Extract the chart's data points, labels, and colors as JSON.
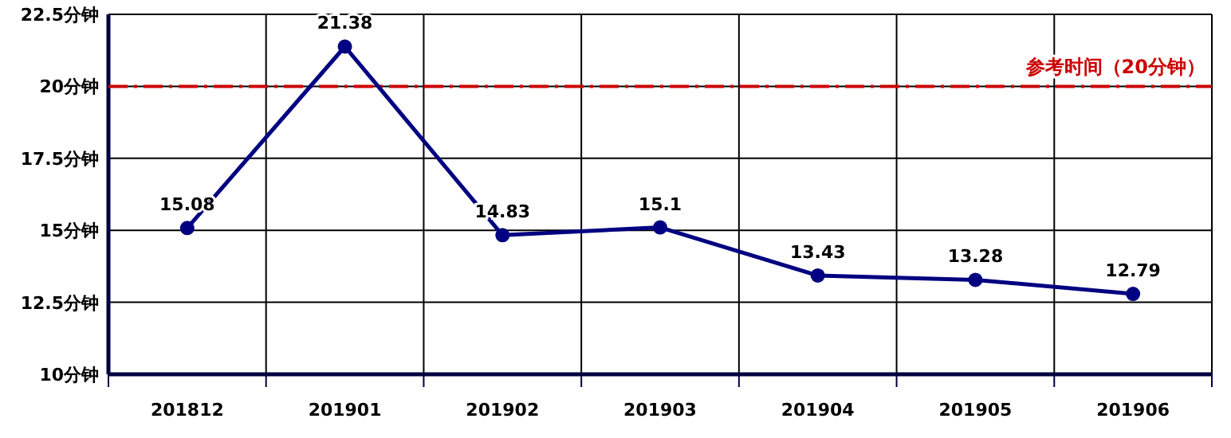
{
  "chart_data": {
    "type": "line",
    "categories": [
      "201812",
      "201901",
      "201902",
      "201903",
      "201904",
      "201905",
      "201906"
    ],
    "series": [
      {
        "color": "#000080",
        "values": [
          15.08,
          21.38,
          14.83,
          15.1,
          13.43,
          13.28,
          12.79
        ]
      }
    ],
    "ylim": [
      10,
      22.5
    ],
    "yticks": [
      {
        "value": 10,
        "label": "10分钟"
      },
      {
        "value": 12.5,
        "label": "12.5分钟"
      },
      {
        "value": 15,
        "label": "15分钟"
      },
      {
        "value": 17.5,
        "label": "17.5分钟"
      },
      {
        "value": 20,
        "label": "20分钟"
      },
      {
        "value": 22.5,
        "label": "22.5分钟"
      }
    ],
    "ref_lines": [
      {
        "axis": "y",
        "value": 20,
        "label": "参考时间（20分钟）",
        "color": "#cc0000",
        "line_style": "dashdot"
      }
    ],
    "grid": true,
    "data_labels": true,
    "marker": "circle",
    "line_style": "solid"
  }
}
